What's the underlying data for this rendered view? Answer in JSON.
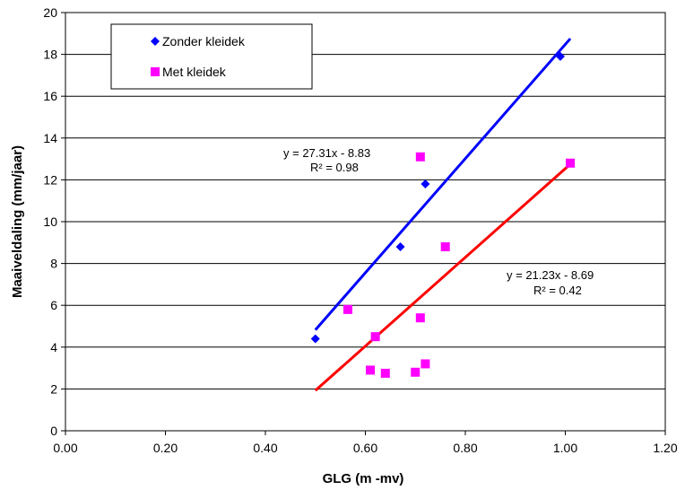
{
  "chart_data": {
    "type": "scatter",
    "title": "",
    "xlabel": "GLG  (m -mv)",
    "ylabel": "Maaiveldaling  (mm/jaar)",
    "xlim": [
      0,
      1.2
    ],
    "ylim": [
      0,
      20
    ],
    "x_ticks": [
      "0.00",
      "0.20",
      "0.40",
      "0.60",
      "0.80",
      "1.00",
      "1.20"
    ],
    "y_ticks": [
      "0",
      "2",
      "4",
      "6",
      "8",
      "10",
      "12",
      "14",
      "16",
      "18",
      "20"
    ],
    "grid": "horizontal",
    "legend_position": "top-left",
    "series": [
      {
        "name": "Zonder kleidek",
        "marker": "diamond",
        "color": "#0000ff",
        "points": [
          [
            0.5,
            4.4
          ],
          [
            0.67,
            8.8
          ],
          [
            0.72,
            11.8
          ],
          [
            0.99,
            17.9
          ]
        ],
        "trendline": {
          "equation": "y = 27.31x - 8.83",
          "r2": "R² = 0.98",
          "color": "#0000ff",
          "slope": 27.31,
          "intercept": -8.83,
          "x_range": [
            0.5,
            1.01
          ]
        }
      },
      {
        "name": "Met kleidek",
        "marker": "square",
        "color": "#ff00ff",
        "points": [
          [
            0.565,
            5.8
          ],
          [
            0.61,
            2.9
          ],
          [
            0.62,
            4.5
          ],
          [
            0.64,
            2.75
          ],
          [
            0.7,
            2.8
          ],
          [
            0.71,
            5.4
          ],
          [
            0.71,
            13.1
          ],
          [
            0.72,
            3.2
          ],
          [
            0.76,
            8.8
          ],
          [
            1.01,
            12.8
          ]
        ],
        "trendline": {
          "equation": "y = 21.23x - 8.69",
          "r2": "R² = 0.42",
          "color": "#ff0000",
          "slope": 21.23,
          "intercept": -8.69,
          "x_range": [
            0.5,
            1.01
          ]
        }
      }
    ]
  }
}
